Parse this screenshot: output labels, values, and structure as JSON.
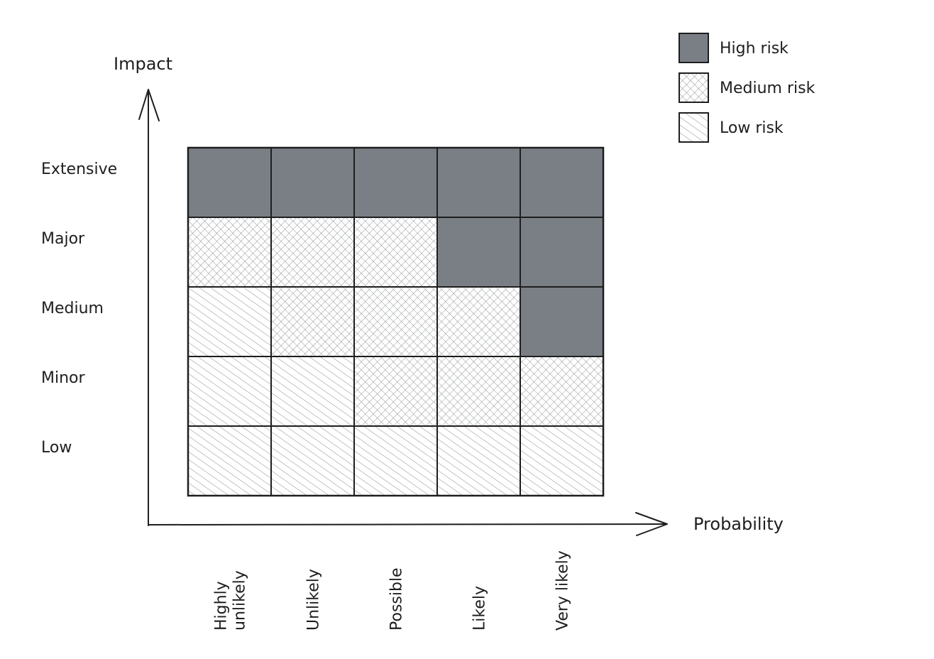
{
  "chart_data": {
    "type": "heatmap",
    "title": "",
    "xlabel": "Probability",
    "ylabel": "Impact",
    "x_categories": [
      "Highly unlikely",
      "Unlikely",
      "Possible",
      "Likely",
      "Very likely"
    ],
    "y_categories": [
      "Extensive",
      "Major",
      "Medium",
      "Minor",
      "Low"
    ],
    "cells": [
      [
        "high",
        "high",
        "high",
        "high",
        "high"
      ],
      [
        "medium",
        "medium",
        "medium",
        "high",
        "high"
      ],
      [
        "low",
        "medium",
        "medium",
        "medium",
        "high"
      ],
      [
        "low",
        "low",
        "medium",
        "medium",
        "medium"
      ],
      [
        "low",
        "low",
        "low",
        "low",
        "low"
      ]
    ],
    "legend": [
      {
        "key": "high",
        "label": "High risk"
      },
      {
        "key": "medium",
        "label": "Medium risk"
      },
      {
        "key": "low",
        "label": "Low risk"
      }
    ],
    "legend_position": "top-right",
    "grid": true
  },
  "colors": {
    "ink": "#1e1e1e",
    "high_fill": "#7a7f86",
    "hatch": "#8f9398",
    "background": "#ffffff"
  }
}
